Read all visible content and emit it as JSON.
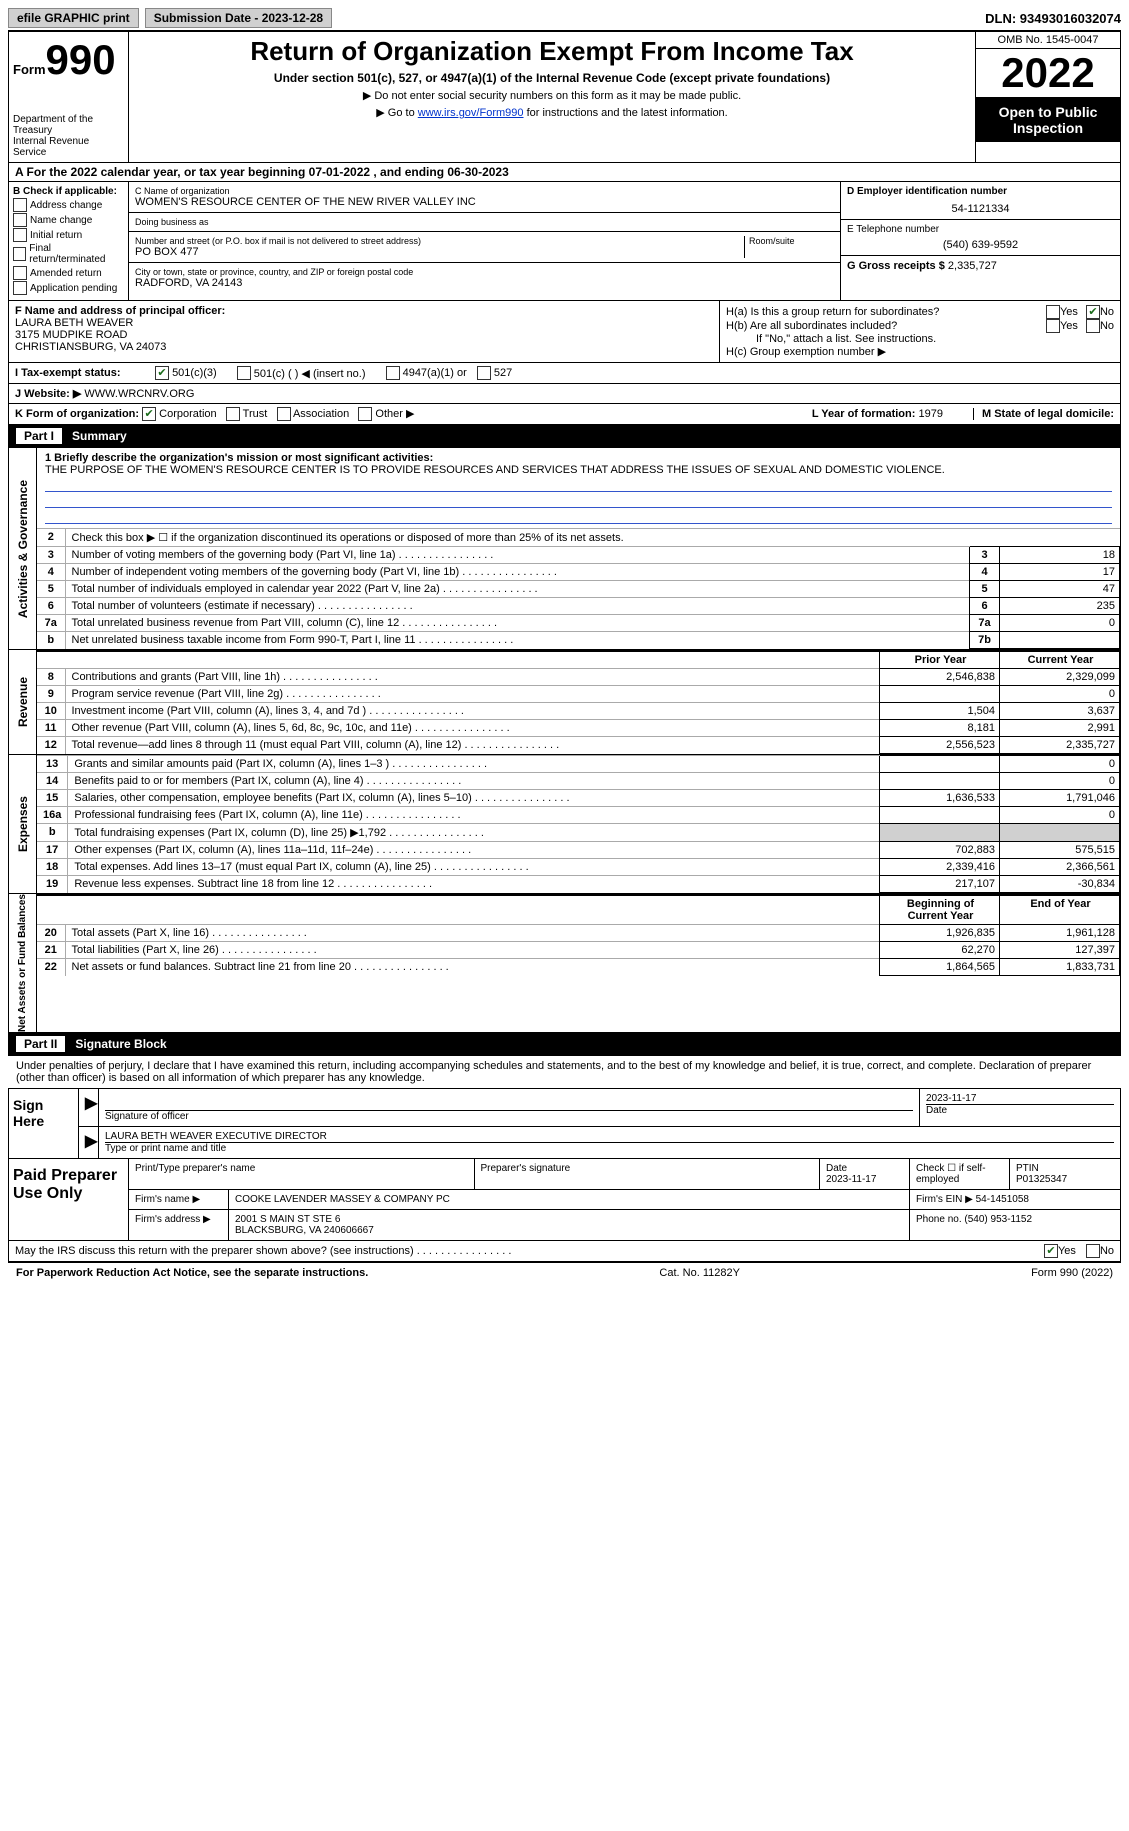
{
  "topbar": {
    "efile": "efile GRAPHIC print",
    "submission": "Submission Date - 2023-12-28",
    "dln": "DLN: 93493016032074"
  },
  "header": {
    "form_label": "Form",
    "form_num": "990",
    "dept": "Department of the Treasury\nInternal Revenue Service",
    "title": "Return of Organization Exempt From Income Tax",
    "subtitle": "Under section 501(c), 527, or 4947(a)(1) of the Internal Revenue Code (except private foundations)",
    "note1": "▶ Do not enter social security numbers on this form as it may be made public.",
    "note2_prefix": "▶ Go to ",
    "note2_link": "www.irs.gov/Form990",
    "note2_suffix": " for instructions and the latest information.",
    "omb": "OMB No. 1545-0047",
    "year": "2022",
    "open": "Open to Public Inspection"
  },
  "rowA": "A For the 2022 calendar year, or tax year beginning 07-01-2022    , and ending 06-30-2023",
  "colB": {
    "title": "B Check if applicable:",
    "items": [
      "Address change",
      "Name change",
      "Initial return",
      "Final return/terminated",
      "Amended return",
      "Application pending"
    ]
  },
  "colC": {
    "name_label": "C Name of organization",
    "name": "WOMEN'S RESOURCE CENTER OF THE NEW RIVER VALLEY INC",
    "dba_label": "Doing business as",
    "dba": "",
    "street_label": "Number and street (or P.O. box if mail is not delivered to street address)",
    "room_label": "Room/suite",
    "street": "PO BOX 477",
    "city_label": "City or town, state or province, country, and ZIP or foreign postal code",
    "city": "RADFORD, VA  24143"
  },
  "colD": {
    "ein_label": "D Employer identification number",
    "ein": "54-1121334",
    "phone_label": "E Telephone number",
    "phone": "(540) 639-9592",
    "receipts_label": "G Gross receipts $",
    "receipts": "2,335,727"
  },
  "sectionF": {
    "f_label": "F  Name and address of principal officer:",
    "f_name": "LAURA BETH WEAVER",
    "f_addr1": "3175 MUDPIKE ROAD",
    "f_addr2": "CHRISTIANSBURG, VA  24073",
    "ha": "H(a)  Is this a group return for subordinates?",
    "hb": "H(b)  Are all subordinates included?",
    "hb_note": "If \"No,\" attach a list. See instructions.",
    "hc": "H(c)  Group exemption number ▶"
  },
  "rowI": {
    "label": "I    Tax-exempt status:",
    "opt1": "501(c)(3)",
    "opt2": "501(c) (  ) ◀ (insert no.)",
    "opt3": "4947(a)(1) or",
    "opt4": "527"
  },
  "rowJ": {
    "label": "J   Website: ▶",
    "value": "WWW.WRCNRV.ORG"
  },
  "rowK": {
    "label": "K Form of organization:",
    "opts": [
      "Corporation",
      "Trust",
      "Association",
      "Other ▶"
    ],
    "year_label": "L Year of formation:",
    "year": "1979",
    "state_label": "M State of legal domicile:",
    "state": ""
  },
  "part1": {
    "num": "Part I",
    "title": "Summary"
  },
  "mission": {
    "label": "1   Briefly describe the organization's mission or most significant activities:",
    "text": "THE PURPOSE OF THE WOMEN'S RESOURCE CENTER IS TO PROVIDE RESOURCES AND SERVICES THAT ADDRESS THE ISSUES OF SEXUAL AND DOMESTIC VIOLENCE."
  },
  "activities": {
    "label": "Activities & Governance",
    "line2": "Check this box ▶ ☐ if the organization discontinued its operations or disposed of more than 25% of its net assets.",
    "rows": [
      {
        "n": "3",
        "d": "Number of voting members of the governing body (Part VI, line 1a)",
        "b": "3",
        "v": "18"
      },
      {
        "n": "4",
        "d": "Number of independent voting members of the governing body (Part VI, line 1b)",
        "b": "4",
        "v": "17"
      },
      {
        "n": "5",
        "d": "Total number of individuals employed in calendar year 2022 (Part V, line 2a)",
        "b": "5",
        "v": "47"
      },
      {
        "n": "6",
        "d": "Total number of volunteers (estimate if necessary)",
        "b": "6",
        "v": "235"
      },
      {
        "n": "7a",
        "d": "Total unrelated business revenue from Part VIII, column (C), line 12",
        "b": "7a",
        "v": "0"
      },
      {
        "n": "b",
        "d": "Net unrelated business taxable income from Form 990-T, Part I, line 11",
        "b": "7b",
        "v": ""
      }
    ]
  },
  "revenue": {
    "label": "Revenue",
    "header_prior": "Prior Year",
    "header_current": "Current Year",
    "rows": [
      {
        "n": "8",
        "d": "Contributions and grants (Part VIII, line 1h)",
        "p": "2,546,838",
        "c": "2,329,099"
      },
      {
        "n": "9",
        "d": "Program service revenue (Part VIII, line 2g)",
        "p": "",
        "c": "0"
      },
      {
        "n": "10",
        "d": "Investment income (Part VIII, column (A), lines 3, 4, and 7d )",
        "p": "1,504",
        "c": "3,637"
      },
      {
        "n": "11",
        "d": "Other revenue (Part VIII, column (A), lines 5, 6d, 8c, 9c, 10c, and 11e)",
        "p": "8,181",
        "c": "2,991"
      },
      {
        "n": "12",
        "d": "Total revenue—add lines 8 through 11 (must equal Part VIII, column (A), line 12)",
        "p": "2,556,523",
        "c": "2,335,727"
      }
    ]
  },
  "expenses": {
    "label": "Expenses",
    "rows": [
      {
        "n": "13",
        "d": "Grants and similar amounts paid (Part IX, column (A), lines 1–3 )",
        "p": "",
        "c": "0"
      },
      {
        "n": "14",
        "d": "Benefits paid to or for members (Part IX, column (A), line 4)",
        "p": "",
        "c": "0"
      },
      {
        "n": "15",
        "d": "Salaries, other compensation, employee benefits (Part IX, column (A), lines 5–10)",
        "p": "1,636,533",
        "c": "1,791,046"
      },
      {
        "n": "16a",
        "d": "Professional fundraising fees (Part IX, column (A), line 11e)",
        "p": "",
        "c": "0"
      },
      {
        "n": "b",
        "d": "Total fundraising expenses (Part IX, column (D), line 25) ▶1,792",
        "p": "gray",
        "c": "gray"
      },
      {
        "n": "17",
        "d": "Other expenses (Part IX, column (A), lines 11a–11d, 11f–24e)",
        "p": "702,883",
        "c": "575,515"
      },
      {
        "n": "18",
        "d": "Total expenses. Add lines 13–17 (must equal Part IX, column (A), line 25)",
        "p": "2,339,416",
        "c": "2,366,561"
      },
      {
        "n": "19",
        "d": "Revenue less expenses. Subtract line 18 from line 12",
        "p": "217,107",
        "c": "-30,834"
      }
    ]
  },
  "netassets": {
    "label": "Net Assets or Fund Balances",
    "header_begin": "Beginning of Current Year",
    "header_end": "End of Year",
    "rows": [
      {
        "n": "20",
        "d": "Total assets (Part X, line 16)",
        "p": "1,926,835",
        "c": "1,961,128"
      },
      {
        "n": "21",
        "d": "Total liabilities (Part X, line 26)",
        "p": "62,270",
        "c": "127,397"
      },
      {
        "n": "22",
        "d": "Net assets or fund balances. Subtract line 21 from line 20",
        "p": "1,864,565",
        "c": "1,833,731"
      }
    ]
  },
  "part2": {
    "num": "Part II",
    "title": "Signature Block"
  },
  "sig_text": "Under penalties of perjury, I declare that I have examined this return, including accompanying schedules and statements, and to the best of my knowledge and belief, it is true, correct, and complete. Declaration of preparer (other than officer) is based on all information of which preparer has any knowledge.",
  "sign": {
    "label": "Sign Here",
    "sig_label": "Signature of officer",
    "date": "2023-11-17",
    "date_label": "Date",
    "name": "LAURA BETH WEAVER  EXECUTIVE DIRECTOR",
    "name_label": "Type or print name and title"
  },
  "preparer": {
    "label": "Paid Preparer Use Only",
    "print_label": "Print/Type preparer's name",
    "sig_label": "Preparer's signature",
    "date_label": "Date",
    "date": "2023-11-17",
    "check_label": "Check ☐ if self-employed",
    "ptin_label": "PTIN",
    "ptin": "P01325347",
    "firm_label": "Firm's name    ▶",
    "firm": "COOKE LAVENDER MASSEY & COMPANY PC",
    "ein_label": "Firm's EIN ▶",
    "ein": "54-1451058",
    "addr_label": "Firm's address ▶",
    "addr1": "2001 S MAIN ST STE 6",
    "addr2": "BLACKSBURG, VA  240606667",
    "phone_label": "Phone no.",
    "phone": "(540) 953-1152"
  },
  "discuss": "May the IRS discuss this return with the preparer shown above? (see instructions)",
  "footer": {
    "left": "For Paperwork Reduction Act Notice, see the separate instructions.",
    "mid": "Cat. No. 11282Y",
    "right": "Form 990 (2022)"
  },
  "yes": "Yes",
  "no": "No"
}
